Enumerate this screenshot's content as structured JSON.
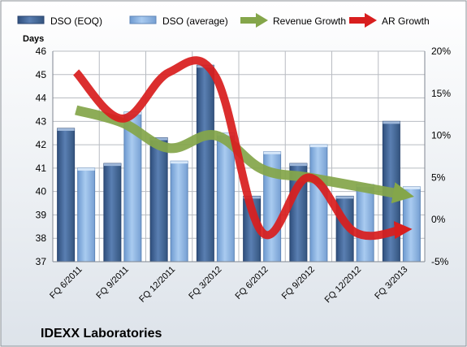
{
  "chart_data": {
    "type": "bar",
    "company": "IDEXX Laboratories",
    "left_axis_title": "Days",
    "categories": [
      "FQ 6/2011",
      "FQ 9/2011",
      "FQ 12/2011",
      "FQ 3/2012",
      "FQ 6/2012",
      "FQ 9/2012",
      "FQ 12/2012",
      "FQ 3/2013"
    ],
    "ylim_left": [
      37,
      46
    ],
    "yticks_left": [
      37,
      38,
      39,
      40,
      41,
      42,
      43,
      44,
      45,
      46
    ],
    "ylim_right": [
      -5,
      20
    ],
    "yticks_right": [
      -5,
      0,
      5,
      10,
      15,
      20
    ],
    "yticks_right_labels": [
      "-5%",
      "0%",
      "5%",
      "10%",
      "15%",
      "20%"
    ],
    "grid": true,
    "legend_position": "top",
    "series": [
      {
        "name": "DSO (EOQ)",
        "kind": "bar",
        "axis": "left",
        "color": "#4a6c9c",
        "values": [
          42.7,
          41.2,
          42.3,
          45.4,
          39.8,
          41.2,
          39.8,
          43.0
        ]
      },
      {
        "name": "DSO (average)",
        "kind": "bar",
        "axis": "left",
        "color": "#8cb4e0",
        "values": [
          41.0,
          43.4,
          41.3,
          42.5,
          41.7,
          42.0,
          40.3,
          40.2
        ]
      },
      {
        "name": "Revenue Growth",
        "kind": "line",
        "axis": "right",
        "color": "#84a64a",
        "values": [
          13.0,
          11.5,
          8.5,
          10.0,
          6.0,
          5.0,
          4.0,
          3.0
        ]
      },
      {
        "name": "AR Growth",
        "kind": "line",
        "axis": "right",
        "color": "#d81e1e",
        "values": [
          17.5,
          12.0,
          17.5,
          17.0,
          -1.5,
          5.0,
          -1.5,
          -1.2
        ]
      }
    ]
  }
}
